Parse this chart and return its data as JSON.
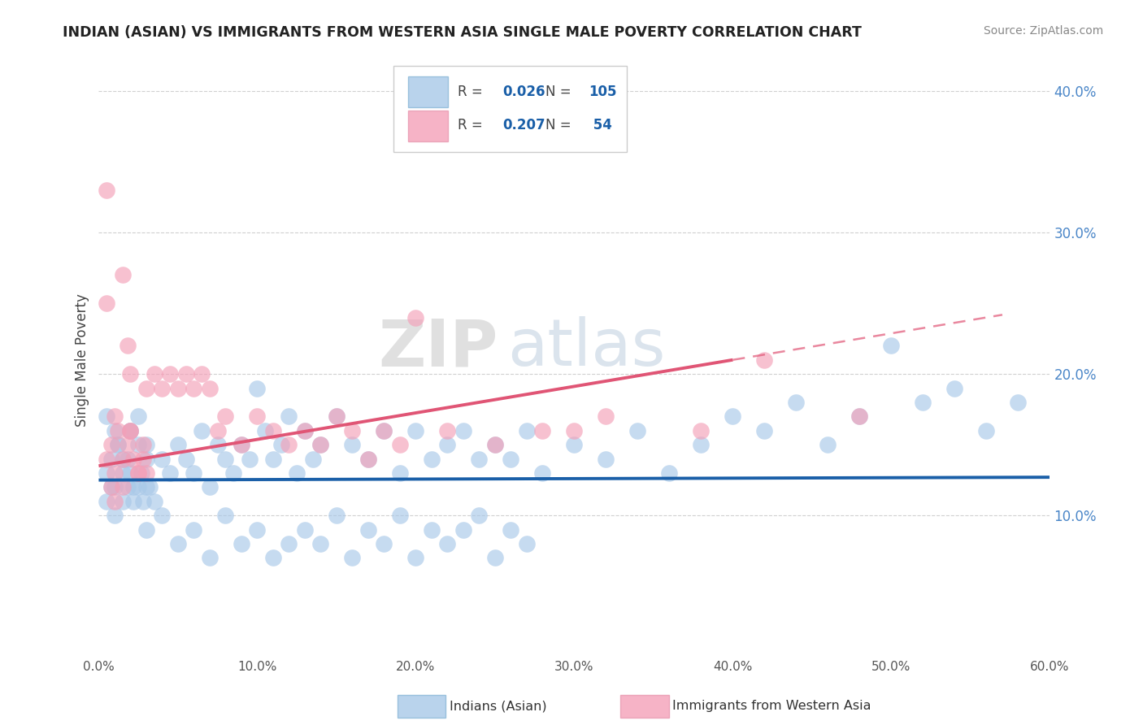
{
  "title": "INDIAN (ASIAN) VS IMMIGRANTS FROM WESTERN ASIA SINGLE MALE POVERTY CORRELATION CHART",
  "source": "Source: ZipAtlas.com",
  "ylabel": "Single Male Poverty",
  "legend_label1": "Indians (Asian)",
  "legend_label2": "Immigrants from Western Asia",
  "r1": 0.026,
  "n1": 105,
  "r2": 0.207,
  "n2": 54,
  "color_blue": "#a8c8e8",
  "color_pink": "#f4a0b8",
  "color_line_blue": "#1a5fa8",
  "color_line_pink": "#e05575",
  "xlim": [
    0.0,
    0.6
  ],
  "ylim": [
    0.0,
    0.42
  ],
  "yticks": [
    0.1,
    0.2,
    0.3,
    0.4
  ],
  "xticks": [
    0.0,
    0.1,
    0.2,
    0.3,
    0.4,
    0.5,
    0.6
  ],
  "watermark_zip": "ZIP",
  "watermark_atlas": "atlas",
  "blue_x": [
    0.005,
    0.008,
    0.01,
    0.012,
    0.015,
    0.018,
    0.02,
    0.022,
    0.025,
    0.027,
    0.03,
    0.032,
    0.005,
    0.008,
    0.01,
    0.015,
    0.018,
    0.02,
    0.022,
    0.025,
    0.028,
    0.03,
    0.035,
    0.005,
    0.01,
    0.012,
    0.015,
    0.02,
    0.025,
    0.03,
    0.04,
    0.045,
    0.05,
    0.055,
    0.06,
    0.065,
    0.07,
    0.075,
    0.08,
    0.085,
    0.09,
    0.095,
    0.1,
    0.105,
    0.11,
    0.115,
    0.12,
    0.125,
    0.13,
    0.135,
    0.14,
    0.15,
    0.16,
    0.17,
    0.18,
    0.19,
    0.2,
    0.21,
    0.22,
    0.23,
    0.24,
    0.25,
    0.26,
    0.27,
    0.28,
    0.3,
    0.32,
    0.34,
    0.36,
    0.38,
    0.4,
    0.42,
    0.44,
    0.46,
    0.48,
    0.5,
    0.52,
    0.54,
    0.56,
    0.58,
    0.03,
    0.04,
    0.05,
    0.06,
    0.07,
    0.08,
    0.09,
    0.1,
    0.11,
    0.12,
    0.13,
    0.14,
    0.15,
    0.16,
    0.17,
    0.18,
    0.19,
    0.2,
    0.21,
    0.22,
    0.23,
    0.24,
    0.25,
    0.26,
    0.27
  ],
  "blue_y": [
    0.13,
    0.14,
    0.12,
    0.15,
    0.13,
    0.14,
    0.16,
    0.12,
    0.15,
    0.13,
    0.14,
    0.12,
    0.11,
    0.12,
    0.1,
    0.11,
    0.12,
    0.13,
    0.11,
    0.12,
    0.11,
    0.12,
    0.11,
    0.17,
    0.16,
    0.15,
    0.14,
    0.16,
    0.17,
    0.15,
    0.14,
    0.13,
    0.15,
    0.14,
    0.13,
    0.16,
    0.12,
    0.15,
    0.14,
    0.13,
    0.15,
    0.14,
    0.19,
    0.16,
    0.14,
    0.15,
    0.17,
    0.13,
    0.16,
    0.14,
    0.15,
    0.17,
    0.15,
    0.14,
    0.16,
    0.13,
    0.16,
    0.14,
    0.15,
    0.16,
    0.14,
    0.15,
    0.14,
    0.16,
    0.13,
    0.15,
    0.14,
    0.16,
    0.13,
    0.15,
    0.17,
    0.16,
    0.18,
    0.15,
    0.17,
    0.22,
    0.18,
    0.19,
    0.16,
    0.18,
    0.09,
    0.1,
    0.08,
    0.09,
    0.07,
    0.1,
    0.08,
    0.09,
    0.07,
    0.08,
    0.09,
    0.08,
    0.1,
    0.07,
    0.09,
    0.08,
    0.1,
    0.07,
    0.09,
    0.08,
    0.09,
    0.1,
    0.07,
    0.09,
    0.08
  ],
  "pink_x": [
    0.005,
    0.008,
    0.01,
    0.012,
    0.015,
    0.018,
    0.02,
    0.022,
    0.025,
    0.028,
    0.005,
    0.008,
    0.01,
    0.015,
    0.018,
    0.02,
    0.025,
    0.028,
    0.03,
    0.005,
    0.01,
    0.015,
    0.02,
    0.03,
    0.035,
    0.04,
    0.045,
    0.05,
    0.055,
    0.06,
    0.065,
    0.07,
    0.075,
    0.08,
    0.09,
    0.1,
    0.11,
    0.12,
    0.13,
    0.14,
    0.15,
    0.16,
    0.17,
    0.18,
    0.19,
    0.2,
    0.22,
    0.25,
    0.28,
    0.3,
    0.32,
    0.38,
    0.42,
    0.48
  ],
  "pink_y": [
    0.14,
    0.15,
    0.13,
    0.16,
    0.14,
    0.15,
    0.16,
    0.14,
    0.13,
    0.15,
    0.25,
    0.12,
    0.11,
    0.12,
    0.22,
    0.2,
    0.13,
    0.14,
    0.13,
    0.33,
    0.17,
    0.27,
    0.16,
    0.19,
    0.2,
    0.19,
    0.2,
    0.19,
    0.2,
    0.19,
    0.2,
    0.19,
    0.16,
    0.17,
    0.15,
    0.17,
    0.16,
    0.15,
    0.16,
    0.15,
    0.17,
    0.16,
    0.14,
    0.16,
    0.15,
    0.24,
    0.16,
    0.15,
    0.16,
    0.16,
    0.17,
    0.16,
    0.21,
    0.17
  ]
}
